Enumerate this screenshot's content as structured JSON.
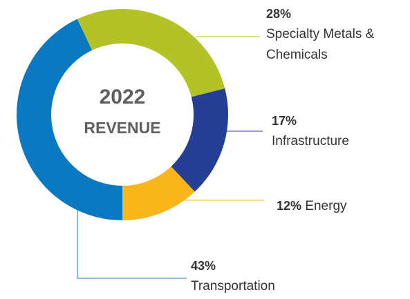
{
  "chart_data": {
    "type": "donut",
    "center_label": {
      "year": "2022",
      "label": "REVENUE"
    },
    "categories": [
      "Specialty Metals & Chemicals",
      "Infrastructure",
      "Energy",
      "Transportation"
    ],
    "values": [
      28,
      17,
      12,
      43
    ],
    "value_labels": [
      "28%",
      "17%",
      "12%",
      "43%"
    ],
    "colors": [
      "#b3c225",
      "#243f95",
      "#f8b61a",
      "#0b79c2"
    ]
  }
}
